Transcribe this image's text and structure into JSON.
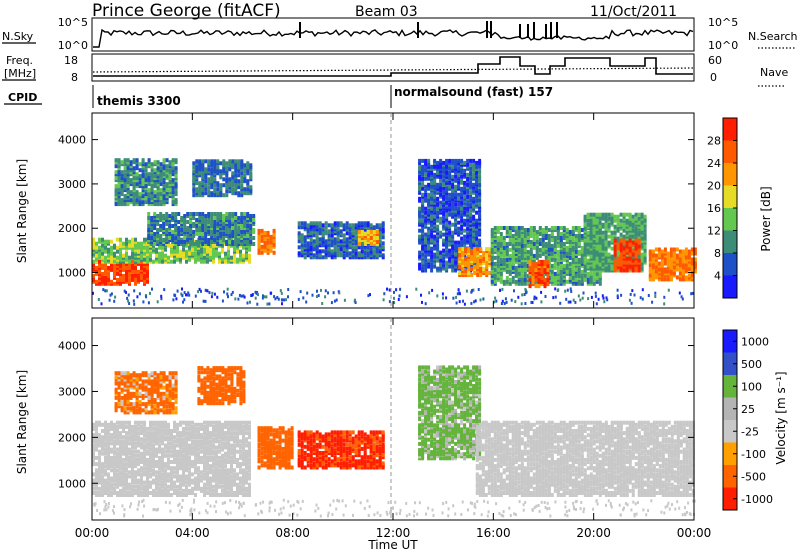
{
  "header": {
    "station": "Prince George (fitACF)",
    "beam": "Beam 03",
    "date": "11/Oct/2011"
  },
  "noise_panel": {
    "left_label": "N.Sky",
    "left_ticks": [
      "10^5",
      "10^0"
    ],
    "right_label": "N.Search",
    "right_ticks": [
      "10^5",
      "10^0"
    ]
  },
  "freq_panel": {
    "left_label_line1": "Freq.",
    "left_label_line2": "[MHz]",
    "left_ticks": [
      "18",
      "8"
    ],
    "right_label": "Nave",
    "right_ticks": [
      "60",
      "0"
    ]
  },
  "cpid_panel": {
    "label": "CPID",
    "segments": [
      {
        "name": "themis 3300",
        "start_hour": 0
      },
      {
        "name": "normalsound (fast) 157",
        "start_hour": 12
      }
    ]
  },
  "colors": {
    "power_scale": [
      "#1a1aff",
      "#1e50c8",
      "#3c8c78",
      "#64c850",
      "#e6dc28",
      "#ff9600",
      "#ff5a00",
      "#ff1e00"
    ],
    "velocity_scale": [
      "#1a1aff",
      "#3250c8",
      "#64b43c",
      "#b4b4b4",
      "#c8c8c8",
      "#ffa000",
      "#ff6400",
      "#ff1e00"
    ]
  },
  "chart_data": [
    {
      "type": "heatmap",
      "name": "power",
      "ylabel": "Slant Range [km]",
      "yticks": [
        1000,
        2000,
        3000,
        4000
      ],
      "ylim": [
        200,
        4600
      ],
      "xlim": [
        0,
        24
      ],
      "colorbar": {
        "label": "Power [dB]",
        "ticks": [
          4,
          8,
          12,
          16,
          20,
          24,
          28
        ],
        "range": [
          0,
          32
        ]
      },
      "regions": [
        {
          "t0": 0.0,
          "t1": 2.2,
          "r0": 700,
          "r1": 1200,
          "level": 28
        },
        {
          "t0": 0.0,
          "t1": 6.3,
          "r0": 1200,
          "r1": 1700,
          "level": 14
        },
        {
          "t0": 2.2,
          "t1": 6.5,
          "r0": 1600,
          "r1": 2300,
          "level": 9
        },
        {
          "t0": 0.9,
          "t1": 3.3,
          "r0": 2500,
          "r1": 3500,
          "level": 10
        },
        {
          "t0": 4.0,
          "t1": 6.3,
          "r0": 2700,
          "r1": 3500,
          "level": 8
        },
        {
          "t0": 6.6,
          "t1": 7.3,
          "r0": 1400,
          "r1": 1900,
          "level": 24
        },
        {
          "t0": 8.2,
          "t1": 11.6,
          "r0": 1300,
          "r1": 2100,
          "level": 7
        },
        {
          "t0": 10.6,
          "t1": 11.4,
          "r0": 1600,
          "r1": 1900,
          "level": 21
        },
        {
          "t0": 13.0,
          "t1": 15.4,
          "r0": 1000,
          "r1": 3500,
          "level": 6
        },
        {
          "t0": 14.6,
          "t1": 15.8,
          "r0": 900,
          "r1": 1500,
          "level": 22
        },
        {
          "t0": 15.9,
          "t1": 20.3,
          "r0": 700,
          "r1": 2000,
          "level": 11
        },
        {
          "t0": 17.4,
          "t1": 18.2,
          "r0": 650,
          "r1": 1200,
          "level": 26
        },
        {
          "t0": 19.6,
          "t1": 22.0,
          "r0": 1000,
          "r1": 2300,
          "level": 12
        },
        {
          "t0": 20.8,
          "t1": 21.8,
          "r0": 1000,
          "r1": 1700,
          "level": 28
        },
        {
          "t0": 22.2,
          "t1": 24.0,
          "r0": 800,
          "r1": 1500,
          "level": 24
        }
      ]
    },
    {
      "type": "heatmap",
      "name": "velocity",
      "ylabel": "Slant Range [km]",
      "yticks": [
        1000,
        2000,
        3000,
        4000
      ],
      "ylim": [
        200,
        4600
      ],
      "xlim": [
        0,
        24
      ],
      "xlabel": "Time UT",
      "xticks": [
        "00:00",
        "04:00",
        "08:00",
        "12:00",
        "16:00",
        "20:00",
        "00:00"
      ],
      "colorbar": {
        "label": "Velocity [m s⁻¹]",
        "ticks": [
          "1000",
          "500",
          "100",
          "25",
          "-25",
          "-100",
          "-500",
          "-1000"
        ]
      },
      "regions": [
        {
          "t0": 0.0,
          "t1": 6.3,
          "r0": 700,
          "r1": 2300,
          "level": 10
        },
        {
          "t0": 0.9,
          "t1": 3.3,
          "r0": 2500,
          "r1": 3400,
          "level": -200
        },
        {
          "t0": 4.2,
          "t1": 6.0,
          "r0": 2700,
          "r1": 3500,
          "level": -300
        },
        {
          "t0": 6.6,
          "t1": 8.0,
          "r0": 1300,
          "r1": 2200,
          "level": -300
        },
        {
          "t0": 8.2,
          "t1": 11.6,
          "r0": 1300,
          "r1": 2100,
          "level": -600
        },
        {
          "t0": 13.0,
          "t1": 15.5,
          "r0": 1500,
          "r1": 3500,
          "level": 200
        },
        {
          "t0": 15.3,
          "t1": 24.0,
          "r0": 700,
          "r1": 2300,
          "level": 5
        }
      ]
    }
  ]
}
